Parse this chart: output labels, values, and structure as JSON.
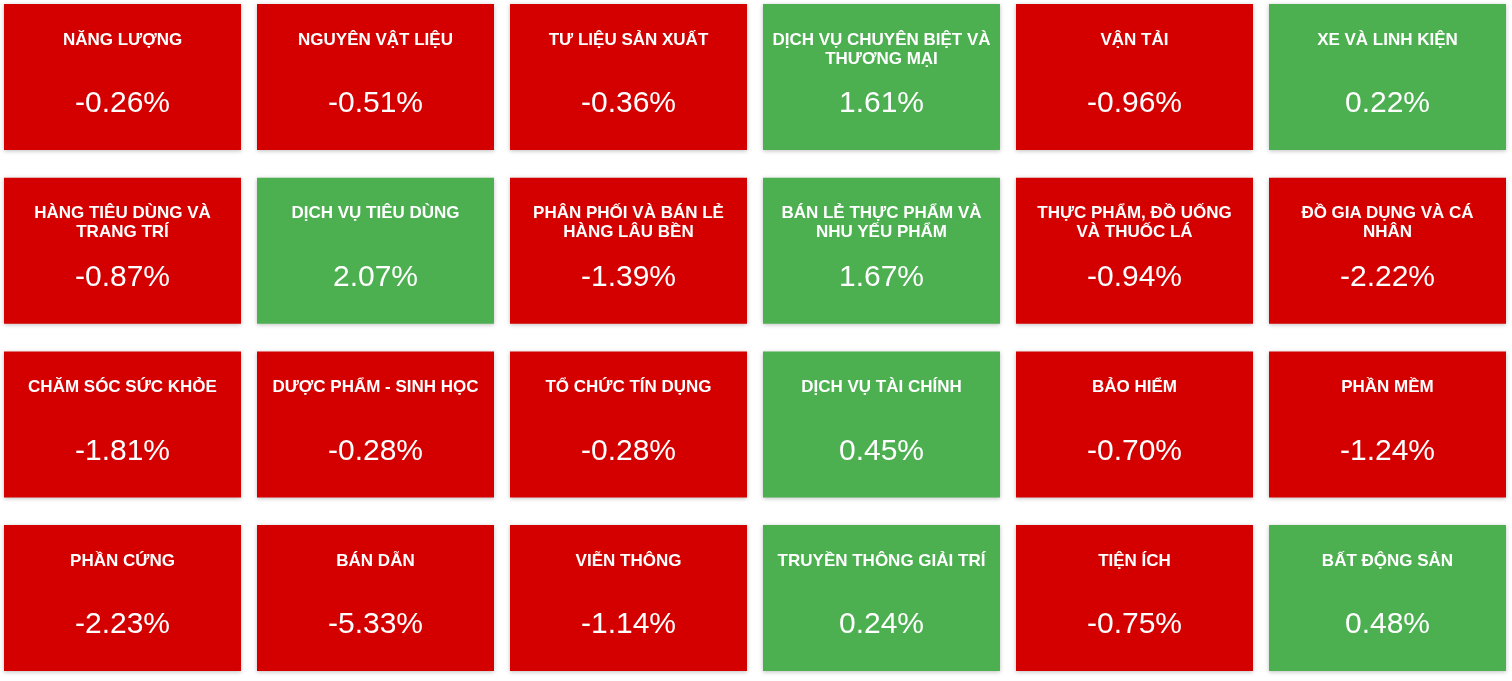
{
  "chart_data": {
    "type": "other",
    "categories": [
      "NĂNG LƯỢNG",
      "NGUYÊN VẬT LIỆU",
      "TƯ LIỆU SẢN XUẤT",
      "DỊCH VỤ CHUYÊN BIỆT VÀ THƯƠNG MẠI",
      "VẬN TẢI",
      "XE VÀ LINH KIỆN",
      "HÀNG TIÊU DÙNG VÀ TRANG TRÍ",
      "DỊCH VỤ TIÊU DÙNG",
      "PHÂN PHỐI VÀ BÁN LẺ HÀNG LÂU BỀN",
      "BÁN LẺ THỰC PHẨM VÀ NHU YẾU PHẨM",
      "THỰC PHẨM, ĐỒ UỐNG VÀ THUỐC LÁ",
      "ĐỒ GIA DỤNG VÀ CÁ NHÂN",
      "CHĂM SÓC SỨC KHỎE",
      "DƯỢC PHẨM - SINH HỌC",
      "TỔ CHỨC TÍN DỤNG",
      "DỊCH VỤ TÀI CHÍNH",
      "BẢO HIỂM",
      "PHẦN MỀM",
      "PHẦN CỨNG",
      "BÁN DẪN",
      "VIỄN THÔNG",
      "TRUYỀN THÔNG GIẢI TRÍ",
      "TIỆN ÍCH",
      "BẤT ĐỘNG SẢN"
    ],
    "values": [
      -0.26,
      -0.51,
      -0.36,
      1.61,
      -0.96,
      0.22,
      -0.87,
      2.07,
      -1.39,
      1.67,
      -0.94,
      -2.22,
      -1.81,
      -0.28,
      -0.28,
      0.45,
      -0.7,
      -1.24,
      -2.23,
      -5.33,
      -1.14,
      0.24,
      -0.75,
      0.48
    ],
    "value_labels": [
      "-0.26%",
      "-0.51%",
      "-0.36%",
      "1.61%",
      "-0.96%",
      "0.22%",
      "-0.87%",
      "2.07%",
      "-1.39%",
      "1.67%",
      "-0.94%",
      "-2.22%",
      "-1.81%",
      "-0.28%",
      "-0.28%",
      "0.45%",
      "-0.70%",
      "-1.24%",
      "-2.23%",
      "-5.33%",
      "-1.14%",
      "0.24%",
      "-0.75%",
      "0.48%"
    ]
  }
}
